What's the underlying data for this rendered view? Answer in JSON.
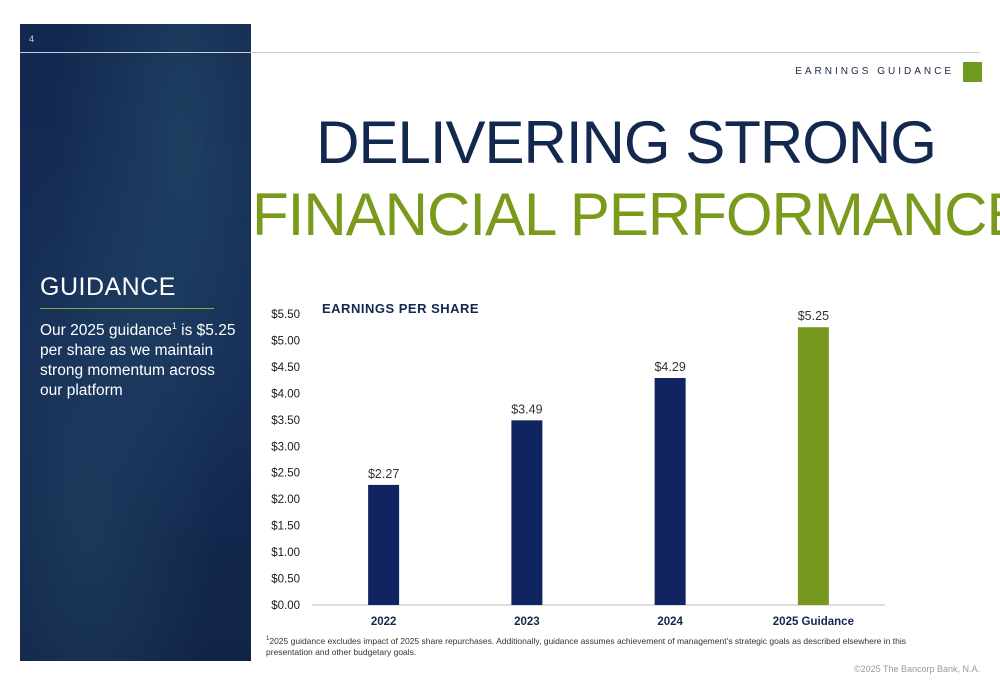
{
  "page": {
    "number": "4",
    "section_label": "EARNINGS GUIDANCE",
    "copyright": "©2025 The Bancorp Bank, N.A."
  },
  "headline": {
    "line1": "DELIVERING STRONG",
    "line2": "FINANCIAL PERFORMANCE"
  },
  "guidance": {
    "title": "GUIDANCE",
    "text_before": "Our 2025 guidance",
    "superscript": "1",
    "text_after": " is $5.25 per share as we maintain strong momentum across our platform"
  },
  "footnote": {
    "marker": "1",
    "text": "2025 guidance excludes impact of 2025 share repurchases.  Additionally, guidance assumes achievement of management’s strategic goals as described elsewhere in this presentation and other budgetary goals."
  },
  "colors": {
    "navy": "#13284f",
    "green": "#7a9a1c",
    "bar_navy": "#0f2460",
    "bar_green": "#76981e"
  },
  "chart_data": {
    "type": "bar",
    "title": "EARNINGS PER SHARE",
    "categories": [
      "2022",
      "2023",
      "2024",
      "2025  Guidance"
    ],
    "values": [
      2.27,
      3.49,
      4.29,
      5.25
    ],
    "value_labels": [
      "$2.27",
      "$3.49",
      "$4.29",
      "$5.25"
    ],
    "bar_colors": [
      "#0f2460",
      "#0f2460",
      "#0f2460",
      "#76981e"
    ],
    "ylim": [
      0,
      5.5
    ],
    "yticks": [
      "$0.00",
      "$0.50",
      "$1.00",
      "$1.50",
      "$2.00",
      "$2.50",
      "$3.00",
      "$3.50",
      "$4.00",
      "$4.50",
      "$5.00",
      "$5.50"
    ],
    "ytick_values": [
      0,
      0.5,
      1,
      1.5,
      2,
      2.5,
      3,
      3.5,
      4,
      4.5,
      5,
      5.5
    ],
    "grid": false,
    "legend": "none"
  }
}
